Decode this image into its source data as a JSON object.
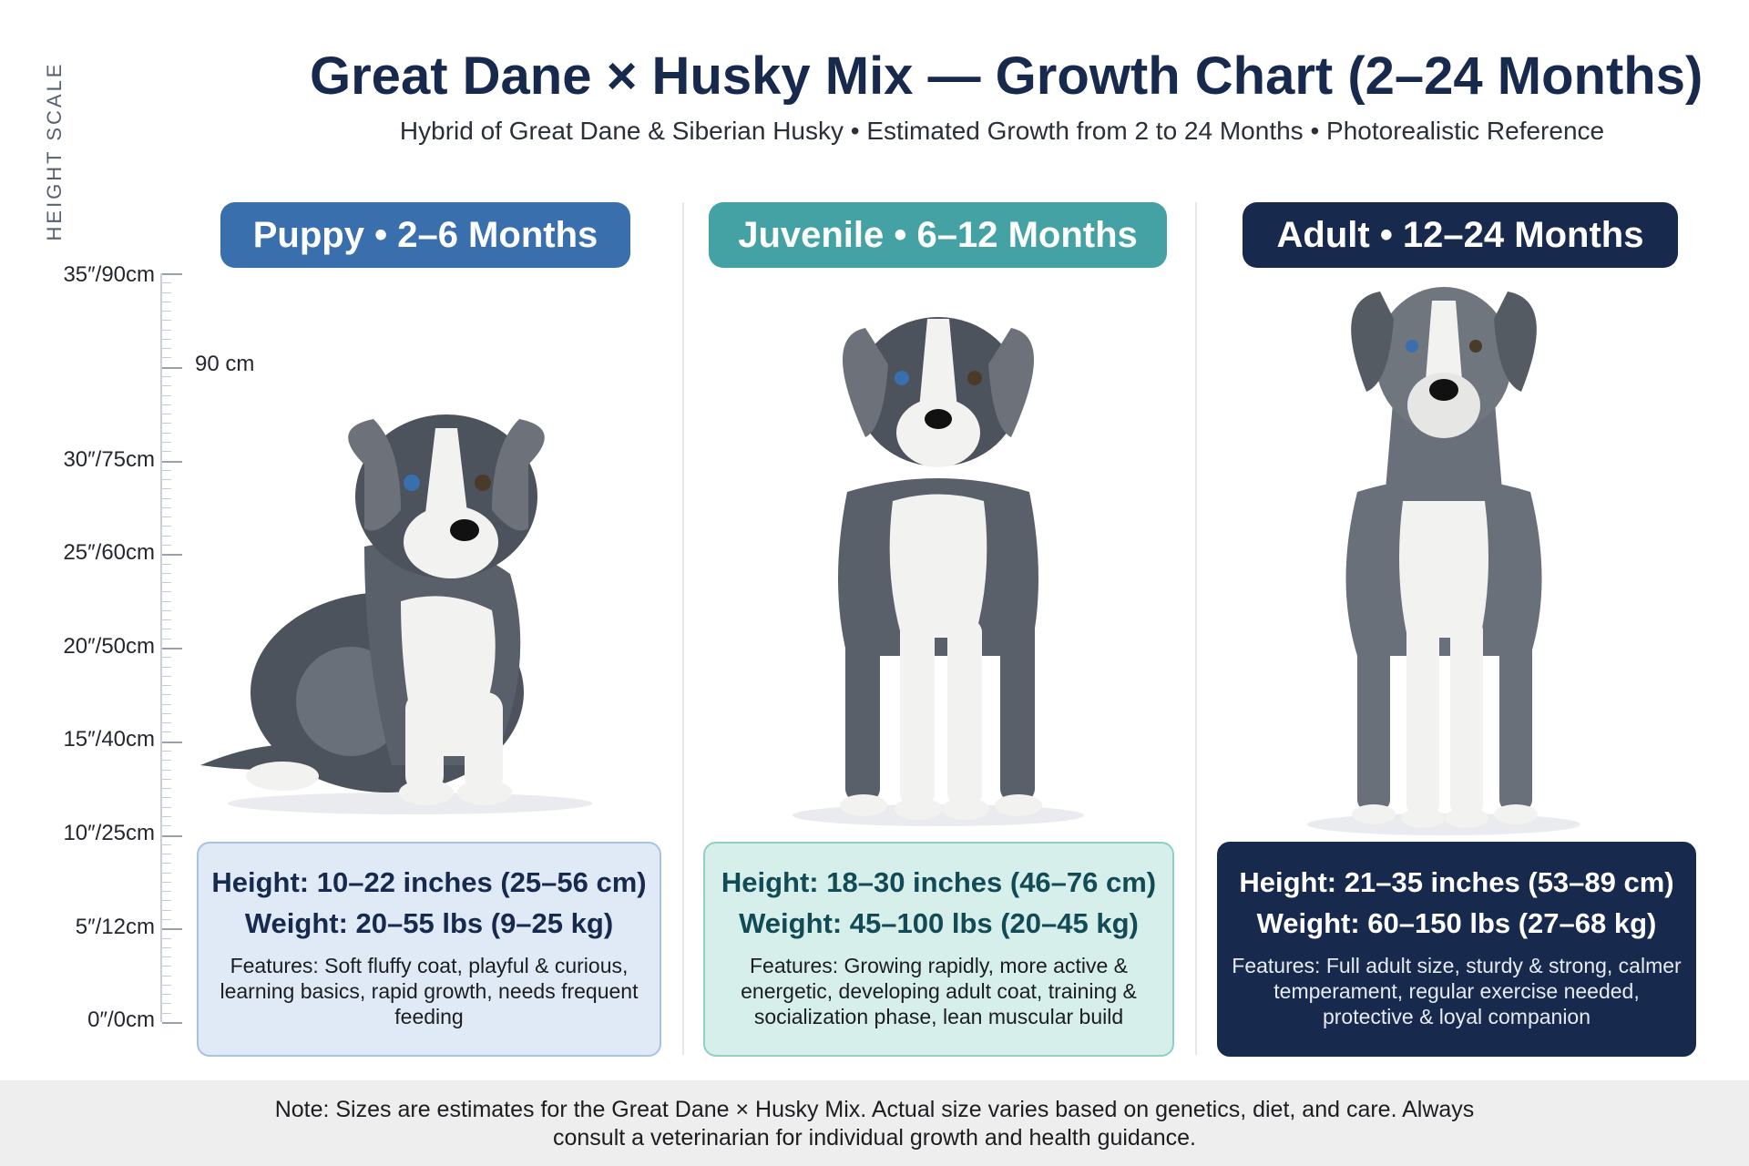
{
  "header": {
    "title": "Great Dane × Husky Mix — Growth Chart (2–24 Months)",
    "subtitle": "Hybrid of Great Dane & Siberian Husky • Estimated Growth from 2 to 24 Months • Photorealistic Reference"
  },
  "scale": {
    "title": "HEIGHT SCALE",
    "labels": [
      "35″/90cm",
      "30″/75cm",
      "25″/60cm",
      "20″/50cm",
      "15″/40cm",
      "10″/25cm",
      "5″/12cm",
      "0″/0cm"
    ],
    "extra_mark": "90 cm"
  },
  "colors": {
    "puppy": "#3a6fae",
    "juvenile": "#45a2a4",
    "adult": "#172a4e",
    "coat_dark": "#4d535c",
    "coat_light": "#f2f2f0"
  },
  "stages": [
    {
      "label": "Puppy • 2–6 Months",
      "height": "Height: 10–22 inches (25–56 cm)",
      "weight": "Weight: 20–55 lbs (9–25 kg)",
      "features": "Features: Soft fluffy coat, playful & curious, learning basics, rapid growth, needs frequent feeding",
      "icon": "sitting-puppy-photo"
    },
    {
      "label": "Juvenile • 6–12 Months",
      "height": "Height: 18–30 inches (46–76 cm)",
      "weight": "Weight: 45–100 lbs (20–45 kg)",
      "features": "Features: Growing rapidly, more active & energetic, developing adult coat, training & socialization phase, lean muscular build",
      "icon": "standing-juvenile-photo"
    },
    {
      "label": "Adult • 12–24 Months",
      "height": "Height: 21–35 inches (53–89 cm)",
      "weight": "Weight: 60–150 lbs (27–68 kg)",
      "features": "Features: Full adult size, sturdy & strong, calmer temperament, regular exercise needed, protective & loyal companion",
      "icon": "standing-adult-photo"
    }
  ],
  "note": {
    "line1": "Note: Sizes are estimates for the Great Dane × Husky Mix. Actual size varies based on genetics, diet, and care. Always",
    "line2": "consult a veterinarian for individual growth and health guidance."
  }
}
